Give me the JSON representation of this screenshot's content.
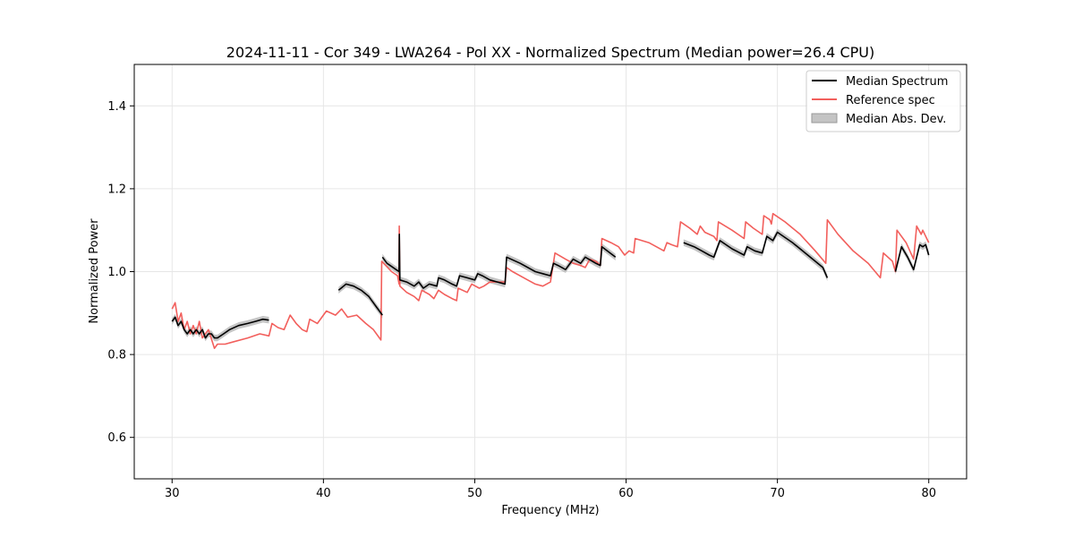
{
  "chart_data": {
    "type": "line",
    "title": "2024-11-11 - Cor 349 - LWA264 - Pol XX - Normalized Spectrum (Median power=26.4 CPU)",
    "xlabel": "Frequency (MHz)",
    "ylabel": "Normalized Power",
    "xlim": [
      27.5,
      82.5
    ],
    "ylim": [
      0.5,
      1.5
    ],
    "xticks": [
      30,
      40,
      50,
      60,
      70,
      80
    ],
    "yticks": [
      0.6,
      0.8,
      1.0,
      1.2,
      1.4
    ],
    "xtick_labels": [
      "30",
      "40",
      "50",
      "60",
      "70",
      "80"
    ],
    "ytick_labels": [
      "0.6",
      "0.8",
      "1.0",
      "1.2",
      "1.4"
    ],
    "grid": true,
    "legend_position": "top-right",
    "legend": [
      "Median Spectrum",
      "Reference spec",
      "Median Abs. Dev."
    ],
    "colors": {
      "median": "#000000",
      "reference": "#f25f5c",
      "mad": "#b0b0b0"
    },
    "mad_halfwidth": 0.008,
    "series": [
      {
        "name": "Median Spectrum",
        "segments": [
          [
            [
              30.0,
              0.88
            ],
            [
              30.2,
              0.89
            ],
            [
              30.4,
              0.87
            ],
            [
              30.6,
              0.88
            ],
            [
              30.8,
              0.86
            ],
            [
              31.0,
              0.85
            ],
            [
              31.2,
              0.86
            ],
            [
              31.4,
              0.85
            ],
            [
              31.6,
              0.86
            ],
            [
              31.8,
              0.85
            ],
            [
              32.0,
              0.86
            ],
            [
              32.2,
              0.84
            ],
            [
              32.4,
              0.85
            ],
            [
              32.6,
              0.85
            ],
            [
              32.8,
              0.84
            ],
            [
              33.0,
              0.84
            ],
            [
              33.4,
              0.85
            ],
            [
              33.8,
              0.86
            ],
            [
              34.4,
              0.87
            ],
            [
              35.0,
              0.875
            ],
            [
              35.5,
              0.88
            ],
            [
              36.0,
              0.885
            ],
            [
              36.4,
              0.883
            ]
          ],
          [
            [
              41.0,
              0.955
            ],
            [
              41.5,
              0.97
            ],
            [
              42.0,
              0.965
            ],
            [
              42.5,
              0.955
            ],
            [
              43.0,
              0.94
            ],
            [
              43.5,
              0.915
            ],
            [
              43.9,
              0.895
            ]
          ],
          [
            [
              43.9,
              1.035
            ],
            [
              44.2,
              1.02
            ],
            [
              44.8,
              1.005
            ],
            [
              45.0,
              1.0
            ],
            [
              45.02,
              1.09
            ],
            [
              45.05,
              0.98
            ],
            [
              45.5,
              0.975
            ],
            [
              46.0,
              0.965
            ],
            [
              46.3,
              0.975
            ],
            [
              46.6,
              0.96
            ],
            [
              47.0,
              0.97
            ],
            [
              47.5,
              0.965
            ],
            [
              47.6,
              0.985
            ],
            [
              48.0,
              0.98
            ],
            [
              48.5,
              0.97
            ],
            [
              48.8,
              0.965
            ],
            [
              49.0,
              0.99
            ],
            [
              49.5,
              0.985
            ],
            [
              50.0,
              0.98
            ],
            [
              50.2,
              0.995
            ],
            [
              50.5,
              0.99
            ],
            [
              51.0,
              0.98
            ],
            [
              51.5,
              0.975
            ],
            [
              52.0,
              0.97
            ],
            [
              52.1,
              1.035
            ],
            [
              53.0,
              1.02
            ],
            [
              54.0,
              1.0
            ],
            [
              54.5,
              0.995
            ],
            [
              55.0,
              0.99
            ],
            [
              55.2,
              1.02
            ],
            [
              55.5,
              1.015
            ],
            [
              56.0,
              1.005
            ],
            [
              56.5,
              1.03
            ],
            [
              57.0,
              1.02
            ],
            [
              57.3,
              1.035
            ],
            [
              58.0,
              1.02
            ],
            [
              58.3,
              1.015
            ],
            [
              58.4,
              1.06
            ],
            [
              59.3,
              1.035
            ]
          ],
          [
            [
              63.8,
              1.07
            ],
            [
              64.5,
              1.06
            ],
            [
              65.0,
              1.05
            ],
            [
              65.5,
              1.04
            ],
            [
              65.8,
              1.035
            ],
            [
              66.2,
              1.075
            ],
            [
              67.0,
              1.055
            ],
            [
              67.8,
              1.04
            ],
            [
              68.0,
              1.06
            ],
            [
              68.5,
              1.05
            ],
            [
              69.0,
              1.045
            ],
            [
              69.3,
              1.085
            ],
            [
              69.7,
              1.075
            ],
            [
              70.0,
              1.095
            ],
            [
              71.0,
              1.07
            ],
            [
              72.0,
              1.04
            ],
            [
              73.0,
              1.01
            ],
            [
              73.3,
              0.985
            ]
          ],
          [
            [
              77.8,
              1.0
            ],
            [
              78.2,
              1.06
            ],
            [
              78.6,
              1.035
            ],
            [
              79.0,
              1.005
            ],
            [
              79.4,
              1.065
            ],
            [
              79.6,
              1.06
            ],
            [
              79.8,
              1.065
            ],
            [
              80.0,
              1.04
            ]
          ]
        ]
      },
      {
        "name": "Reference spec",
        "segments": [
          [
            [
              30.0,
              0.91
            ],
            [
              30.2,
              0.925
            ],
            [
              30.4,
              0.88
            ],
            [
              30.6,
              0.9
            ],
            [
              30.8,
              0.86
            ],
            [
              31.0,
              0.88
            ],
            [
              31.2,
              0.85
            ],
            [
              31.4,
              0.87
            ],
            [
              31.6,
              0.85
            ],
            [
              31.8,
              0.88
            ],
            [
              32.0,
              0.84
            ],
            [
              32.4,
              0.86
            ],
            [
              32.8,
              0.815
            ],
            [
              33.0,
              0.825
            ],
            [
              33.5,
              0.825
            ],
            [
              34.0,
              0.83
            ],
            [
              35.0,
              0.84
            ],
            [
              35.8,
              0.85
            ],
            [
              36.4,
              0.845
            ],
            [
              36.6,
              0.875
            ],
            [
              37.0,
              0.865
            ],
            [
              37.4,
              0.86
            ],
            [
              37.8,
              0.895
            ],
            [
              38.2,
              0.875
            ],
            [
              38.6,
              0.86
            ],
            [
              38.9,
              0.855
            ],
            [
              39.1,
              0.885
            ],
            [
              39.6,
              0.875
            ],
            [
              40.2,
              0.905
            ],
            [
              40.8,
              0.895
            ],
            [
              41.2,
              0.91
            ],
            [
              41.6,
              0.89
            ],
            [
              42.2,
              0.895
            ],
            [
              42.8,
              0.875
            ],
            [
              43.3,
              0.86
            ],
            [
              43.8,
              0.835
            ],
            [
              43.85,
              1.025
            ],
            [
              44.5,
              1.0
            ],
            [
              44.9,
              0.99
            ],
            [
              45.0,
              0.97
            ],
            [
              45.01,
              1.11
            ],
            [
              45.05,
              0.965
            ],
            [
              45.5,
              0.95
            ],
            [
              46.0,
              0.94
            ],
            [
              46.3,
              0.93
            ],
            [
              46.5,
              0.955
            ],
            [
              47.0,
              0.945
            ],
            [
              47.3,
              0.935
            ],
            [
              47.6,
              0.955
            ],
            [
              48.0,
              0.945
            ],
            [
              48.5,
              0.935
            ],
            [
              48.8,
              0.93
            ],
            [
              48.9,
              0.96
            ],
            [
              49.5,
              0.95
            ],
            [
              49.8,
              0.97
            ],
            [
              50.3,
              0.96
            ],
            [
              50.6,
              0.965
            ],
            [
              51.0,
              0.975
            ],
            [
              51.5,
              0.975
            ],
            [
              52.0,
              0.975
            ],
            [
              52.1,
              1.01
            ],
            [
              52.5,
              1.0
            ],
            [
              53.5,
              0.98
            ],
            [
              54.0,
              0.97
            ],
            [
              54.5,
              0.965
            ],
            [
              55.0,
              0.975
            ],
            [
              55.3,
              1.045
            ],
            [
              56.0,
              1.03
            ],
            [
              56.5,
              1.02
            ],
            [
              57.0,
              1.015
            ],
            [
              57.3,
              1.01
            ],
            [
              57.6,
              1.03
            ],
            [
              58.0,
              1.025
            ],
            [
              58.3,
              1.015
            ],
            [
              58.4,
              1.08
            ],
            [
              59.0,
              1.07
            ],
            [
              59.5,
              1.06
            ],
            [
              59.9,
              1.04
            ],
            [
              60.2,
              1.05
            ],
            [
              60.5,
              1.045
            ],
            [
              60.6,
              1.08
            ],
            [
              61.5,
              1.07
            ],
            [
              62.0,
              1.06
            ],
            [
              62.5,
              1.05
            ],
            [
              62.7,
              1.07
            ],
            [
              63.0,
              1.065
            ],
            [
              63.4,
              1.06
            ],
            [
              63.6,
              1.12
            ],
            [
              64.2,
              1.105
            ],
            [
              64.7,
              1.09
            ],
            [
              64.9,
              1.11
            ],
            [
              65.2,
              1.095
            ],
            [
              65.8,
              1.085
            ],
            [
              66.0,
              1.075
            ],
            [
              66.1,
              1.12
            ],
            [
              67.0,
              1.1
            ],
            [
              67.8,
              1.08
            ],
            [
              67.9,
              1.12
            ],
            [
              68.4,
              1.105
            ],
            [
              68.8,
              1.095
            ],
            [
              69.0,
              1.09
            ],
            [
              69.1,
              1.135
            ],
            [
              69.5,
              1.125
            ],
            [
              69.6,
              1.115
            ],
            [
              69.7,
              1.14
            ],
            [
              70.5,
              1.12
            ],
            [
              71.5,
              1.09
            ],
            [
              72.5,
              1.05
            ],
            [
              73.2,
              1.02
            ],
            [
              73.3,
              1.125
            ],
            [
              74.0,
              1.09
            ],
            [
              75.0,
              1.05
            ],
            [
              76.0,
              1.02
            ],
            [
              76.8,
              0.985
            ],
            [
              77.0,
              1.045
            ],
            [
              77.6,
              1.025
            ],
            [
              77.8,
              1.0
            ],
            [
              77.9,
              1.1
            ],
            [
              78.5,
              1.07
            ],
            [
              79.0,
              1.03
            ],
            [
              79.2,
              1.11
            ],
            [
              79.5,
              1.09
            ],
            [
              79.6,
              1.1
            ],
            [
              80.0,
              1.07
            ]
          ]
        ]
      }
    ]
  }
}
